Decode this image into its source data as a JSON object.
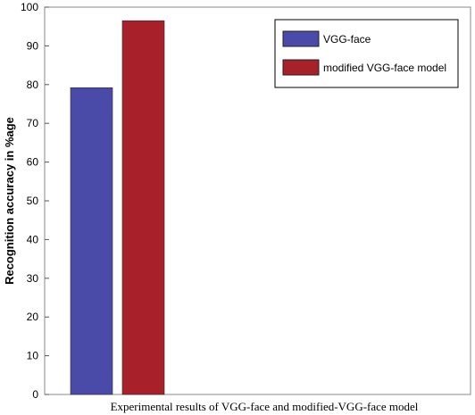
{
  "chart_data": {
    "type": "bar",
    "categories": [
      ""
    ],
    "series": [
      {
        "name": "VGG-face",
        "values": [
          79.2
        ],
        "color": "#4a4aa8"
      },
      {
        "name": "modified VGG-face model",
        "values": [
          96.5
        ],
        "color": "#a8202a"
      }
    ],
    "title": "",
    "xlabel": "Experimental results of VGG-face and modified-VGG-face model",
    "ylabel": "Recognition accuracy in %age",
    "ylim": [
      0,
      100
    ],
    "yticks": [
      "0",
      "10",
      "20",
      "30",
      "40",
      "50",
      "60",
      "70",
      "80",
      "90",
      "100"
    ],
    "grid": false,
    "legend_position": "top-right"
  }
}
